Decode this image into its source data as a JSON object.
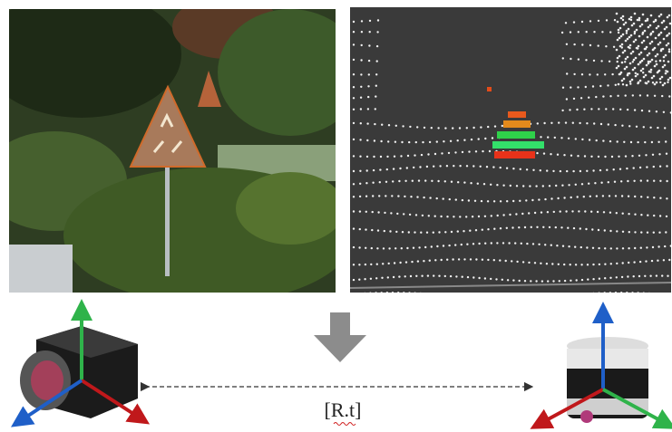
{
  "label": "[R.t]"
}
